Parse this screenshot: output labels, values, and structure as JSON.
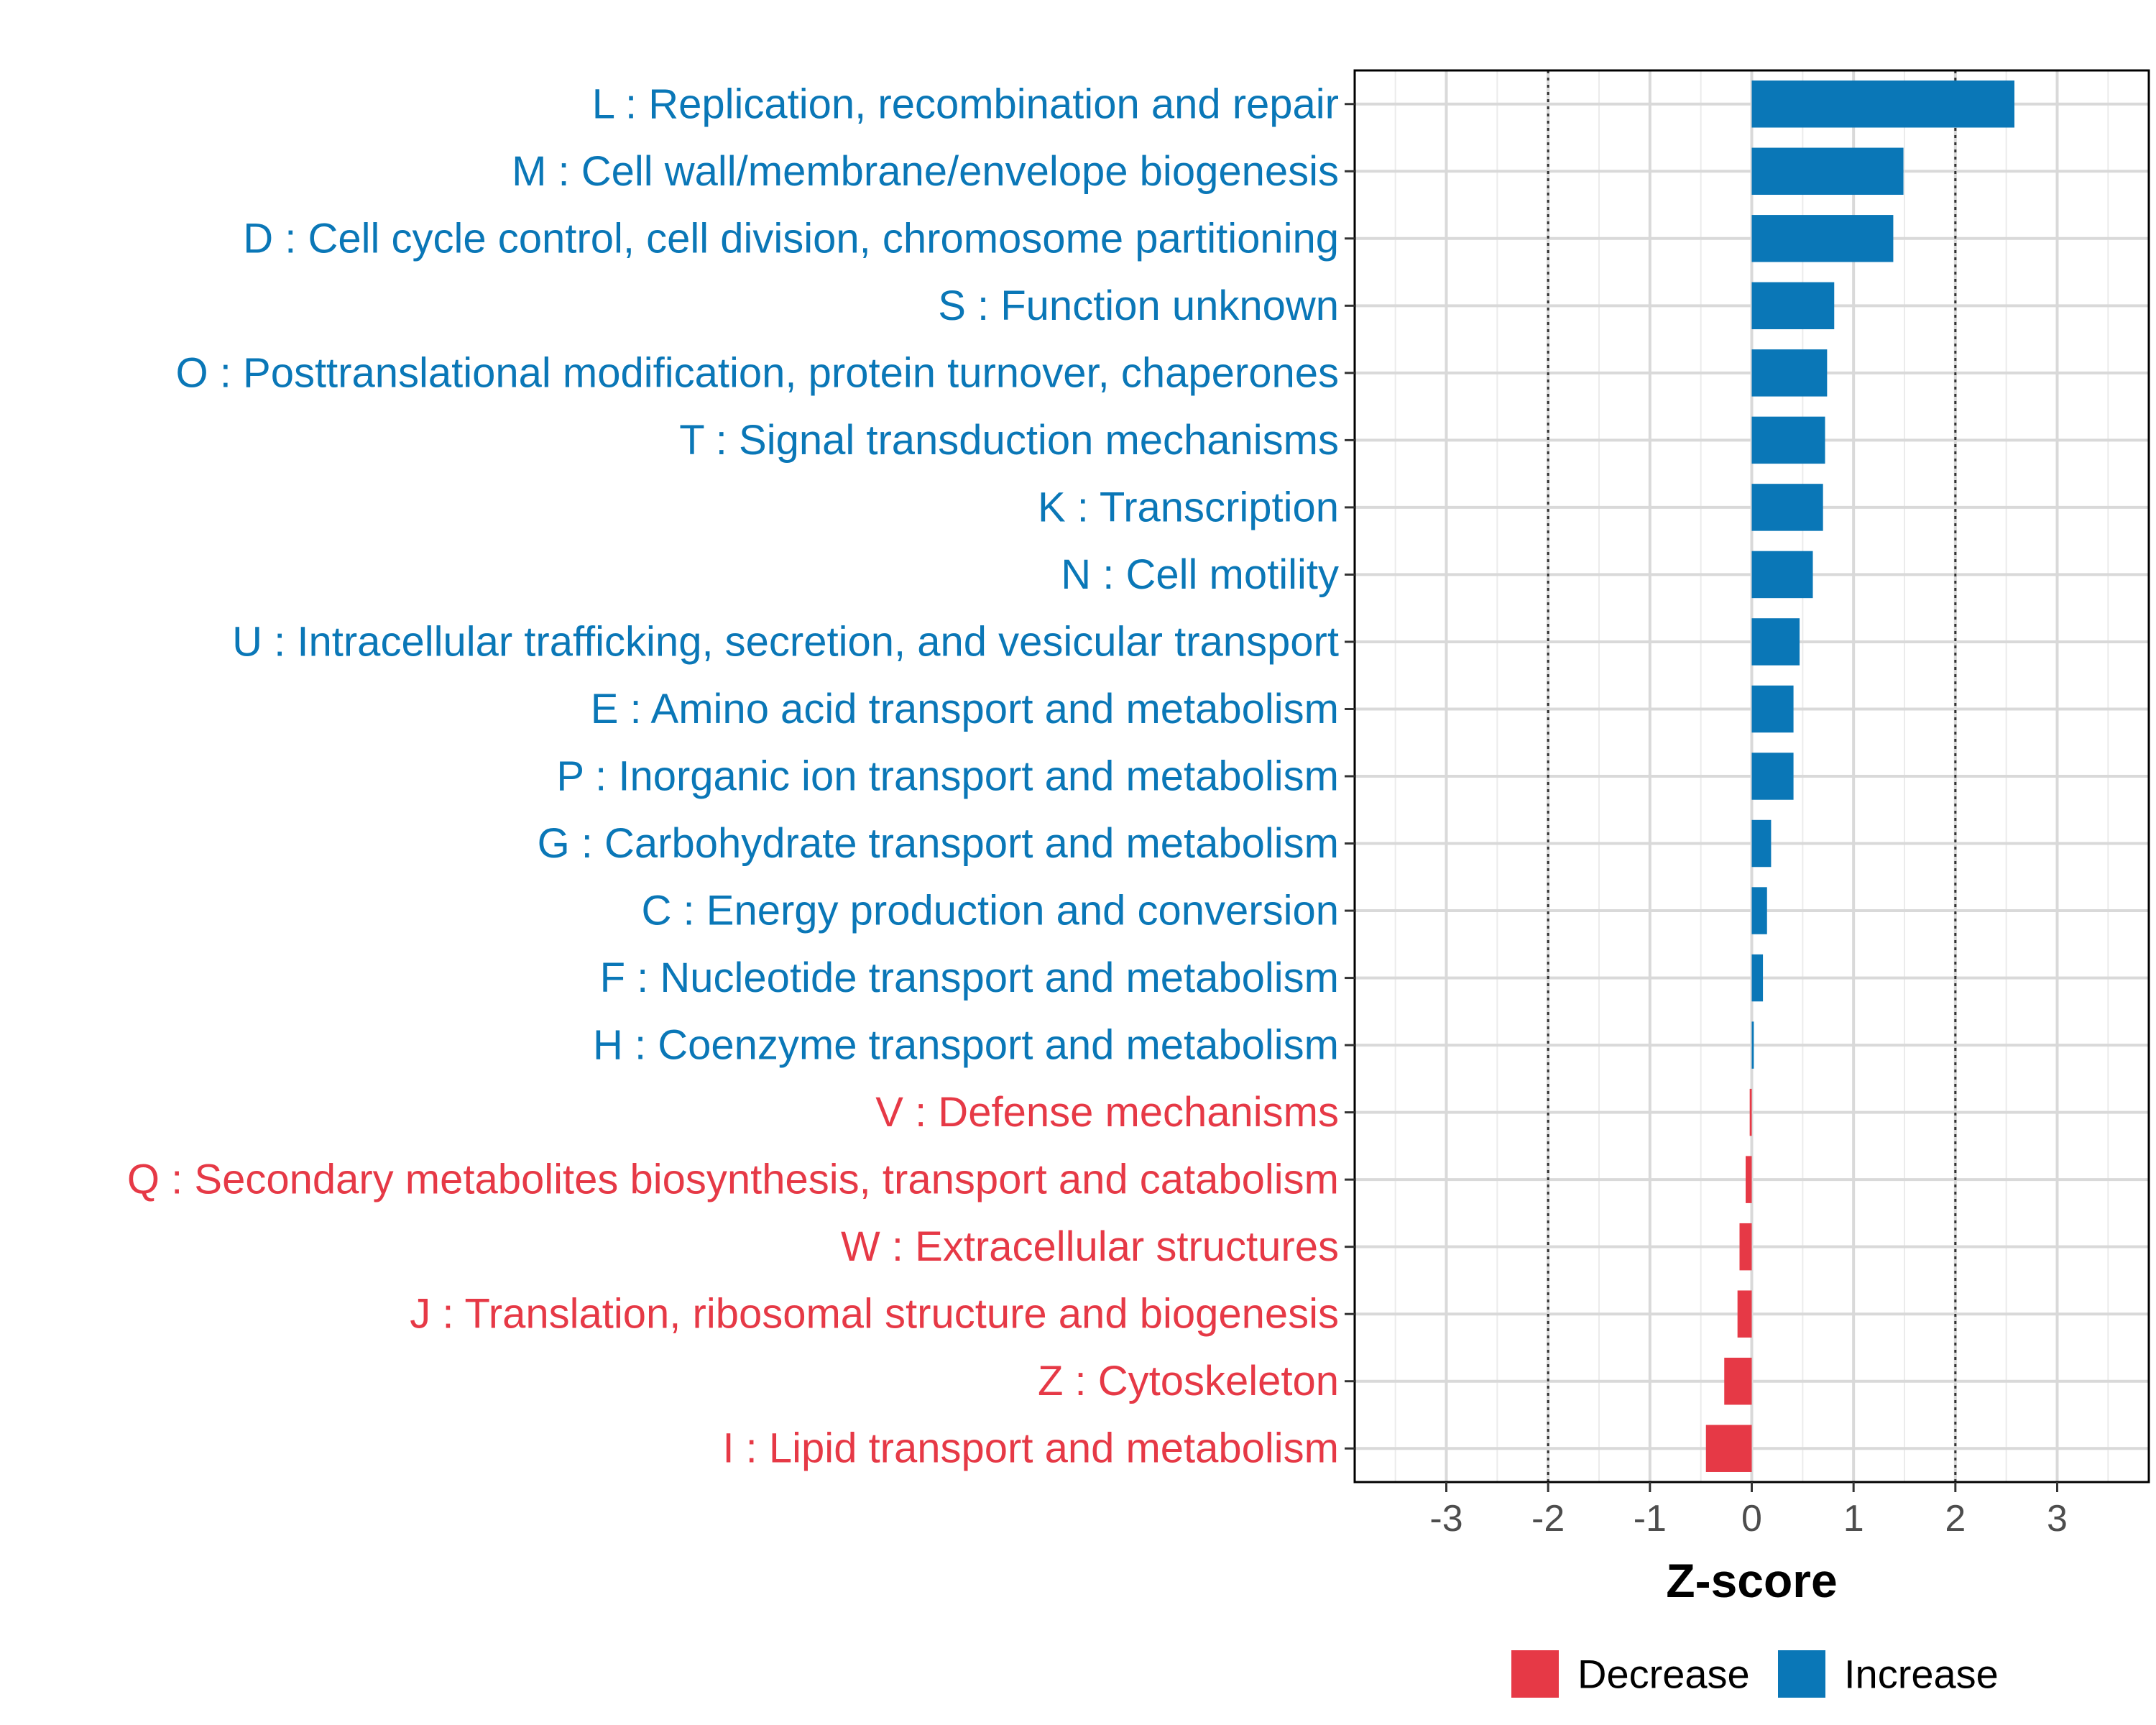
{
  "chart_data": {
    "type": "bar",
    "orientation": "horizontal",
    "xlabel": "Z-score",
    "xlim": [
      -3.9,
      3.9
    ],
    "xticks": [
      -3,
      -2,
      -1,
      0,
      1,
      2,
      3
    ],
    "reference_lines": [
      -2,
      2
    ],
    "grid": true,
    "legend_position": "bottom",
    "colors": {
      "Decrease": "#e63946",
      "Increase": "#0a77b7"
    },
    "legend": [
      {
        "name": "Decrease",
        "color": "#e63946"
      },
      {
        "name": "Increase",
        "color": "#0a77b7"
      }
    ],
    "categories": [
      "L : Replication, recombination and repair",
      "M : Cell wall/membrane/envelope biogenesis",
      "D : Cell cycle control, cell division, chromosome partitioning",
      "S : Function unknown",
      "O : Posttranslational modification, protein turnover, chaperones",
      "T : Signal transduction mechanisms",
      "K : Transcription",
      "N : Cell motility",
      "U : Intracellular trafficking, secretion, and vesicular transport",
      "E : Amino acid transport and metabolism",
      "P : Inorganic ion transport and metabolism",
      "G : Carbohydrate transport and metabolism",
      "C : Energy production and conversion",
      "F : Nucleotide transport and metabolism",
      "H : Coenzyme transport and metabolism",
      "V : Defense mechanisms",
      "Q : Secondary metabolites biosynthesis, transport and catabolism",
      "W : Extracellular structures",
      "J : Translation, ribosomal structure and biogenesis",
      "Z : Cytoskeleton",
      "I : Lipid transport and metabolism"
    ],
    "values": [
      2.58,
      1.49,
      1.39,
      0.81,
      0.74,
      0.72,
      0.7,
      0.6,
      0.47,
      0.41,
      0.41,
      0.19,
      0.15,
      0.11,
      0.02,
      -0.02,
      -0.06,
      -0.12,
      -0.14,
      -0.27,
      -0.45
    ],
    "direction": [
      "Increase",
      "Increase",
      "Increase",
      "Increase",
      "Increase",
      "Increase",
      "Increase",
      "Increase",
      "Increase",
      "Increase",
      "Increase",
      "Increase",
      "Increase",
      "Increase",
      "Increase",
      "Decrease",
      "Decrease",
      "Decrease",
      "Decrease",
      "Decrease",
      "Decrease"
    ]
  }
}
